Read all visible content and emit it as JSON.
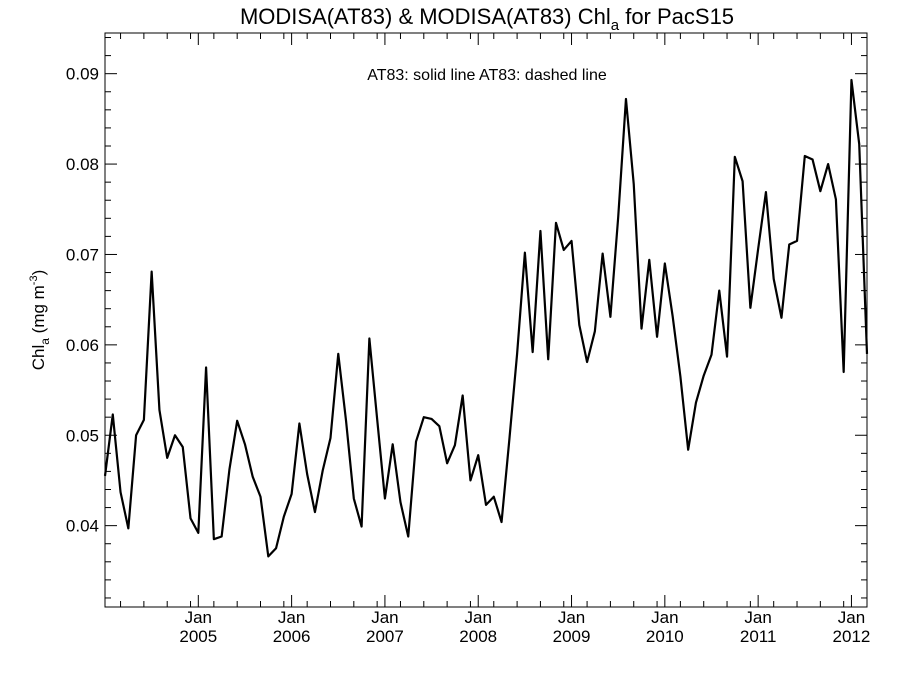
{
  "chart_data": {
    "type": "line",
    "title_main": "MODISA(AT83) & MODISA(AT83)  Chl",
    "title_sub": "a",
    "title_tail": " for PacS15",
    "ylabel_main": "Chl",
    "ylabel_sub": "a",
    "ylabel_unit": " (mg m",
    "ylabel_sup": "-3",
    "ylabel_close": ")",
    "annotation": "AT83: solid line   AT83: dashed line",
    "xlim": [
      "2004-01",
      "2012-03"
    ],
    "ylim": [
      0.031,
      0.0945
    ],
    "y_ticks": [
      {
        "value": 0.04,
        "label": "0.04"
      },
      {
        "value": 0.05,
        "label": "0.05"
      },
      {
        "value": 0.06,
        "label": "0.06"
      },
      {
        "value": 0.07,
        "label": "0.07"
      },
      {
        "value": 0.08,
        "label": "0.08"
      },
      {
        "value": 0.09,
        "label": "0.09"
      }
    ],
    "x_ticks": [
      {
        "date": "2005-01",
        "month": "Jan",
        "year": "2005"
      },
      {
        "date": "2006-01",
        "month": "Jan",
        "year": "2006"
      },
      {
        "date": "2007-01",
        "month": "Jan",
        "year": "2007"
      },
      {
        "date": "2008-01",
        "month": "Jan",
        "year": "2008"
      },
      {
        "date": "2009-01",
        "month": "Jan",
        "year": "2009"
      },
      {
        "date": "2010-01",
        "month": "Jan",
        "year": "2010"
      },
      {
        "date": "2011-01",
        "month": "Jan",
        "year": "2011"
      },
      {
        "date": "2012-01",
        "month": "Jan",
        "year": "2012"
      }
    ],
    "series": [
      {
        "style": "solid",
        "color": "#000000",
        "points": [
          [
            "2004-01",
            0.0455
          ],
          [
            "2004-02",
            0.0523
          ],
          [
            "2004-03",
            0.0437
          ],
          [
            "2004-04",
            0.0397
          ],
          [
            "2004-05",
            0.05
          ],
          [
            "2004-06",
            0.0517
          ],
          [
            "2004-07",
            0.0681
          ],
          [
            "2004-08",
            0.0528
          ],
          [
            "2004-09",
            0.0475
          ],
          [
            "2004-10",
            0.05
          ],
          [
            "2004-11",
            0.0487
          ],
          [
            "2004-12",
            0.0408
          ],
          [
            "2005-01",
            0.0392
          ],
          [
            "2005-02",
            0.0575
          ],
          [
            "2005-03",
            0.0385
          ],
          [
            "2005-04",
            0.0388
          ],
          [
            "2005-05",
            0.0462
          ],
          [
            "2005-06",
            0.0516
          ],
          [
            "2005-07",
            0.049
          ],
          [
            "2005-08",
            0.0454
          ],
          [
            "2005-09",
            0.0432
          ],
          [
            "2005-10",
            0.0366
          ],
          [
            "2005-11",
            0.0375
          ],
          [
            "2005-12",
            0.041
          ],
          [
            "2006-01",
            0.0435
          ],
          [
            "2006-02",
            0.0513
          ],
          [
            "2006-03",
            0.0457
          ],
          [
            "2006-04",
            0.0415
          ],
          [
            "2006-05",
            0.0461
          ],
          [
            "2006-06",
            0.0497
          ],
          [
            "2006-07",
            0.059
          ],
          [
            "2006-08",
            0.0516
          ],
          [
            "2006-09",
            0.043
          ],
          [
            "2006-10",
            0.0399
          ],
          [
            "2006-11",
            0.0607
          ],
          [
            "2006-12",
            0.0518
          ],
          [
            "2007-01",
            0.043
          ],
          [
            "2007-02",
            0.049
          ],
          [
            "2007-03",
            0.0426
          ],
          [
            "2007-04",
            0.0388
          ],
          [
            "2007-05",
            0.0493
          ],
          [
            "2007-06",
            0.052
          ],
          [
            "2007-07",
            0.0518
          ],
          [
            "2007-08",
            0.051
          ],
          [
            "2007-09",
            0.0469
          ],
          [
            "2007-10",
            0.0489
          ],
          [
            "2007-11",
            0.0544
          ],
          [
            "2007-12",
            0.045
          ],
          [
            "2008-01",
            0.0478
          ],
          [
            "2008-02",
            0.0423
          ],
          [
            "2008-03",
            0.0432
          ],
          [
            "2008-04",
            0.0404
          ],
          [
            "2008-05",
            0.0495
          ],
          [
            "2008-06",
            0.059
          ],
          [
            "2008-07",
            0.0702
          ],
          [
            "2008-08",
            0.0592
          ],
          [
            "2008-09",
            0.0726
          ],
          [
            "2008-10",
            0.0584
          ],
          [
            "2008-11",
            0.0735
          ],
          [
            "2008-12",
            0.0705
          ],
          [
            "2009-01",
            0.0715
          ],
          [
            "2009-02",
            0.0622
          ],
          [
            "2009-03",
            0.0581
          ],
          [
            "2009-04",
            0.0615
          ],
          [
            "2009-05",
            0.0701
          ],
          [
            "2009-06",
            0.0631
          ],
          [
            "2009-07",
            0.0741
          ],
          [
            "2009-08",
            0.0872
          ],
          [
            "2009-09",
            0.0778
          ],
          [
            "2009-10",
            0.0618
          ],
          [
            "2009-11",
            0.0694
          ],
          [
            "2009-12",
            0.0609
          ],
          [
            "2010-01",
            0.069
          ],
          [
            "2010-02",
            0.0632
          ],
          [
            "2010-03",
            0.0565
          ],
          [
            "2010-04",
            0.0484
          ],
          [
            "2010-05",
            0.0536
          ],
          [
            "2010-06",
            0.0566
          ],
          [
            "2010-07",
            0.0589
          ],
          [
            "2010-08",
            0.066
          ],
          [
            "2010-09",
            0.0587
          ],
          [
            "2010-10",
            0.0808
          ],
          [
            "2010-11",
            0.0781
          ],
          [
            "2010-12",
            0.0641
          ],
          [
            "2011-01",
            0.0706
          ],
          [
            "2011-02",
            0.0769
          ],
          [
            "2011-03",
            0.0673
          ],
          [
            "2011-04",
            0.063
          ],
          [
            "2011-05",
            0.0711
          ],
          [
            "2011-06",
            0.0715
          ],
          [
            "2011-07",
            0.0809
          ],
          [
            "2011-08",
            0.0805
          ],
          [
            "2011-09",
            0.077
          ],
          [
            "2011-10",
            0.08
          ],
          [
            "2011-11",
            0.0761
          ],
          [
            "2011-12",
            0.057
          ],
          [
            "2012-01",
            0.0893
          ],
          [
            "2012-02",
            0.0822
          ],
          [
            "2012-03",
            0.059
          ]
        ]
      }
    ]
  }
}
